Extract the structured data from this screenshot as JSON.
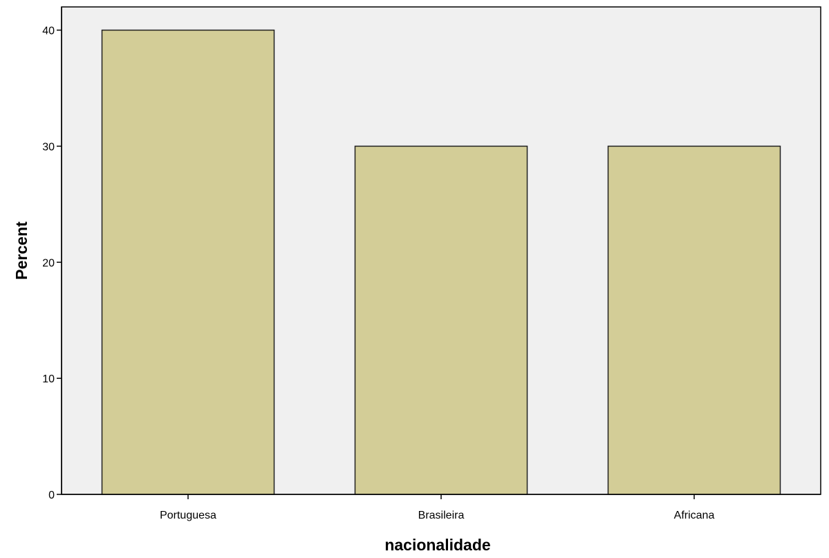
{
  "chart_data": {
    "type": "bar",
    "title": "",
    "xlabel": "nacionalidade",
    "ylabel": "Percent",
    "categories": [
      "Portuguesa",
      "Brasileira",
      "Africana"
    ],
    "values": [
      40,
      30,
      30
    ],
    "ylim": [
      0,
      42
    ],
    "yticks": [
      0,
      10,
      20,
      30,
      40
    ],
    "grid": false,
    "legend": "none",
    "colors": {
      "bar_fill": "#d3cd97",
      "bar_stroke": "#1f1f1f",
      "plot_background": "#f0f0f0",
      "axis": "#000000"
    }
  }
}
